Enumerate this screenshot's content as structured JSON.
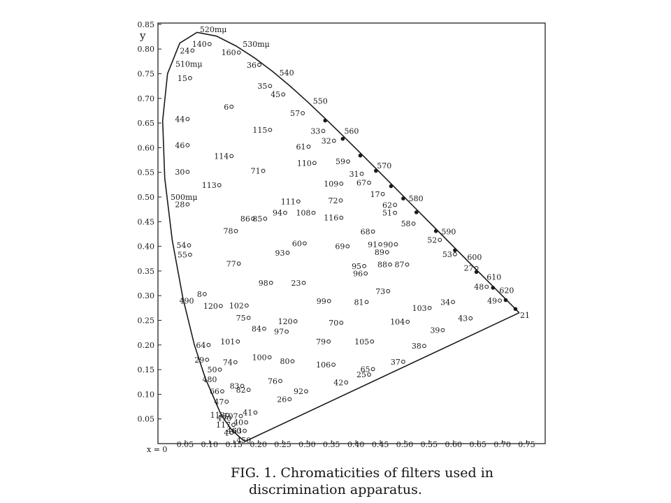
{
  "chart_data": {
    "type": "scatter",
    "title": "",
    "caption": {
      "line1": "FIG. 1. Chromaticities of filters used in",
      "line2": "discrimination apparatus."
    },
    "xlabel": "x = 0",
    "ylabel": "y",
    "xlim": [
      0,
      0.75
    ],
    "ylim": [
      0,
      0.85
    ],
    "grid": false,
    "x_ticks": [
      "0.05",
      "0.10",
      "0.15",
      "0.20",
      "0.25",
      "0.30",
      "0.35",
      "0.40",
      "0.45",
      "0.50",
      "0.55",
      "0.60",
      "0.65",
      "0.70",
      "0.75"
    ],
    "x_tick_values": [
      0.05,
      0.1,
      0.15,
      0.2,
      0.25,
      0.3,
      0.35,
      0.4,
      0.45,
      0.5,
      0.55,
      0.6,
      0.65,
      0.7,
      0.75
    ],
    "y_ticks": [
      "0.85",
      "0.80",
      "0.75",
      "0.70",
      "0.65",
      "0.60",
      "0.55",
      "0.50",
      "0.45",
      "0.40",
      "0.35",
      "0.30",
      "0.25",
      "0.20",
      "0.15",
      "0.10",
      "0.05"
    ],
    "y_tick_values": [
      0.85,
      0.8,
      0.75,
      0.7,
      0.65,
      0.6,
      0.55,
      0.5,
      0.45,
      0.4,
      0.35,
      0.3,
      0.25,
      0.2,
      0.15,
      0.1,
      0.05
    ],
    "spectrum_locus": [
      [
        0.1741,
        0.005
      ],
      [
        0.1733,
        0.0048
      ],
      [
        0.1714,
        0.0051
      ],
      [
        0.1689,
        0.0069
      ],
      [
        0.1644,
        0.0109
      ],
      [
        0.1566,
        0.0177
      ],
      [
        0.144,
        0.0297
      ],
      [
        0.1241,
        0.0578
      ],
      [
        0.0913,
        0.1327
      ],
      [
        0.0687,
        0.2007
      ],
      [
        0.0454,
        0.295
      ],
      [
        0.0235,
        0.4127
      ],
      [
        0.0082,
        0.5384
      ],
      [
        0.0039,
        0.6548
      ],
      [
        0.0139,
        0.7502
      ],
      [
        0.0389,
        0.812
      ],
      [
        0.0743,
        0.8338
      ],
      [
        0.1142,
        0.8262
      ],
      [
        0.1547,
        0.8059
      ],
      [
        0.1929,
        0.7816
      ],
      [
        0.2296,
        0.7543
      ],
      [
        0.2658,
        0.7243
      ],
      [
        0.3016,
        0.6923
      ],
      [
        0.3373,
        0.6589
      ],
      [
        0.3731,
        0.6245
      ],
      [
        0.4087,
        0.5896
      ],
      [
        0.4441,
        0.5547
      ],
      [
        0.4788,
        0.5202
      ],
      [
        0.5125,
        0.4866
      ],
      [
        0.5448,
        0.4544
      ],
      [
        0.5752,
        0.4242
      ],
      [
        0.6029,
        0.3965
      ],
      [
        0.627,
        0.3725
      ],
      [
        0.6482,
        0.3514
      ],
      [
        0.6658,
        0.334
      ],
      [
        0.6801,
        0.3197
      ],
      [
        0.6915,
        0.3083
      ],
      [
        0.7006,
        0.2993
      ],
      [
        0.7079,
        0.292
      ],
      [
        0.714,
        0.2859
      ],
      [
        0.719,
        0.2809
      ],
      [
        0.723,
        0.277
      ],
      [
        0.726,
        0.274
      ],
      [
        0.7347,
        0.2653
      ]
    ],
    "wavelength_labels": [
      {
        "text": "450",
        "x": 0.155,
        "y": 0.007
      },
      {
        "text": "460",
        "x": 0.135,
        "y": 0.026
      },
      {
        "text": "470",
        "x": 0.115,
        "y": 0.052
      },
      {
        "text": "480",
        "x": 0.085,
        "y": 0.13
      },
      {
        "text": "490",
        "x": 0.038,
        "y": 0.29
      },
      {
        "text": "500mμ",
        "x": 0.02,
        "y": 0.5
      },
      {
        "text": "510mμ",
        "x": 0.03,
        "y": 0.77
      },
      {
        "text": "520mμ",
        "x": 0.08,
        "y": 0.84
      },
      {
        "text": "530mμ",
        "x": 0.168,
        "y": 0.81
      },
      {
        "text": "540",
        "x": 0.243,
        "y": 0.752
      },
      {
        "text": "550",
        "x": 0.312,
        "y": 0.695
      },
      {
        "text": "560",
        "x": 0.376,
        "y": 0.634
      },
      {
        "text": "570",
        "x": 0.443,
        "y": 0.564
      },
      {
        "text": "580",
        "x": 0.508,
        "y": 0.497
      },
      {
        "text": "590",
        "x": 0.575,
        "y": 0.43
      },
      {
        "text": "600",
        "x": 0.628,
        "y": 0.378
      },
      {
        "text": "610",
        "x": 0.668,
        "y": 0.338
      },
      {
        "text": "620",
        "x": 0.694,
        "y": 0.311
      }
    ],
    "points": [
      {
        "label": "140",
        "x": 0.1,
        "y": 0.81
      },
      {
        "label": "24",
        "x": 0.065,
        "y": 0.797
      },
      {
        "label": "160",
        "x": 0.16,
        "y": 0.793
      },
      {
        "label": "36",
        "x": 0.202,
        "y": 0.768
      },
      {
        "label": "15",
        "x": 0.06,
        "y": 0.741
      },
      {
        "label": "35",
        "x": 0.224,
        "y": 0.725
      },
      {
        "label": "45",
        "x": 0.251,
        "y": 0.708
      },
      {
        "label": "6",
        "x": 0.145,
        "y": 0.683
      },
      {
        "label": "57",
        "x": 0.291,
        "y": 0.67
      },
      {
        "label": "44",
        "x": 0.055,
        "y": 0.658
      },
      {
        "label": "115",
        "x": 0.224,
        "y": 0.636
      },
      {
        "label": "33",
        "x": 0.333,
        "y": 0.634
      },
      {
        "label": "32",
        "x": 0.355,
        "y": 0.614
      },
      {
        "label": "46",
        "x": 0.055,
        "y": 0.605
      },
      {
        "label": "61",
        "x": 0.303,
        "y": 0.602
      },
      {
        "label": "114",
        "x": 0.145,
        "y": 0.583
      },
      {
        "label": "110",
        "x": 0.315,
        "y": 0.569
      },
      {
        "label": "59",
        "x": 0.384,
        "y": 0.572
      },
      {
        "label": "71",
        "x": 0.21,
        "y": 0.553
      },
      {
        "label": "30",
        "x": 0.055,
        "y": 0.551
      },
      {
        "label": "31",
        "x": 0.412,
        "y": 0.547
      },
      {
        "label": "67",
        "x": 0.427,
        "y": 0.529
      },
      {
        "label": "113",
        "x": 0.12,
        "y": 0.524
      },
      {
        "label": "109",
        "x": 0.37,
        "y": 0.527
      },
      {
        "label": "17",
        "x": 0.455,
        "y": 0.506
      },
      {
        "label": "72",
        "x": 0.369,
        "y": 0.493
      },
      {
        "label": "111",
        "x": 0.282,
        "y": 0.491
      },
      {
        "label": "62",
        "x": 0.48,
        "y": 0.484
      },
      {
        "label": "28",
        "x": 0.055,
        "y": 0.485
      },
      {
        "label": "51",
        "x": 0.48,
        "y": 0.468
      },
      {
        "label": "94",
        "x": 0.255,
        "y": 0.468
      },
      {
        "label": "108",
        "x": 0.313,
        "y": 0.468
      },
      {
        "label": "116",
        "x": 0.37,
        "y": 0.458
      },
      {
        "label": "86",
        "x": 0.189,
        "y": 0.456
      },
      {
        "label": "85",
        "x": 0.214,
        "y": 0.456
      },
      {
        "label": "58",
        "x": 0.518,
        "y": 0.446
      },
      {
        "label": "78",
        "x": 0.154,
        "y": 0.431
      },
      {
        "label": "68",
        "x": 0.435,
        "y": 0.43
      },
      {
        "label": "52",
        "x": 0.572,
        "y": 0.413
      },
      {
        "label": "91",
        "x": 0.45,
        "y": 0.404
      },
      {
        "label": "90",
        "x": 0.482,
        "y": 0.404
      },
      {
        "label": "60",
        "x": 0.295,
        "y": 0.406
      },
      {
        "label": "69",
        "x": 0.383,
        "y": 0.4
      },
      {
        "label": "54",
        "x": 0.058,
        "y": 0.402
      },
      {
        "label": "89",
        "x": 0.464,
        "y": 0.388
      },
      {
        "label": "93",
        "x": 0.26,
        "y": 0.387
      },
      {
        "label": "55",
        "x": 0.06,
        "y": 0.383
      },
      {
        "label": "53",
        "x": 0.603,
        "y": 0.384
      },
      {
        "label": "77",
        "x": 0.16,
        "y": 0.365
      },
      {
        "label": "88",
        "x": 0.47,
        "y": 0.363
      },
      {
        "label": "87",
        "x": 0.505,
        "y": 0.363
      },
      {
        "label": "95",
        "x": 0.417,
        "y": 0.36
      },
      {
        "label": "27",
        "x": 0.647,
        "y": 0.356
      },
      {
        "label": "96",
        "x": 0.42,
        "y": 0.345
      },
      {
        "label": "98",
        "x": 0.226,
        "y": 0.326
      },
      {
        "label": "23",
        "x": 0.293,
        "y": 0.326
      },
      {
        "label": "73",
        "x": 0.466,
        "y": 0.309
      },
      {
        "label": "48",
        "x": 0.668,
        "y": 0.318
      },
      {
        "label": "49",
        "x": 0.695,
        "y": 0.29
      },
      {
        "label": "8",
        "x": 0.09,
        "y": 0.303
      },
      {
        "label": "99",
        "x": 0.345,
        "y": 0.289
      },
      {
        "label": "81",
        "x": 0.422,
        "y": 0.287
      },
      {
        "label": "34",
        "x": 0.599,
        "y": 0.287
      },
      {
        "label": "102",
        "x": 0.176,
        "y": 0.28
      },
      {
        "label": "120",
        "x": 0.123,
        "y": 0.279
      },
      {
        "label": "103",
        "x": 0.551,
        "y": 0.275
      },
      {
        "label": "75",
        "x": 0.18,
        "y": 0.255
      },
      {
        "label": "120",
        "x": 0.276,
        "y": 0.248
      },
      {
        "label": "43",
        "x": 0.635,
        "y": 0.254
      },
      {
        "label": "104",
        "x": 0.506,
        "y": 0.247
      },
      {
        "label": "70",
        "x": 0.37,
        "y": 0.245
      },
      {
        "label": "84",
        "x": 0.212,
        "y": 0.233
      },
      {
        "label": "97",
        "x": 0.258,
        "y": 0.227
      },
      {
        "label": "39",
        "x": 0.578,
        "y": 0.23
      },
      {
        "label": "79",
        "x": 0.344,
        "y": 0.207
      },
      {
        "label": "64",
        "x": 0.098,
        "y": 0.2
      },
      {
        "label": "101",
        "x": 0.158,
        "y": 0.207
      },
      {
        "label": "105",
        "x": 0.433,
        "y": 0.207
      },
      {
        "label": "38",
        "x": 0.54,
        "y": 0.198
      },
      {
        "label": "29",
        "x": 0.095,
        "y": 0.17
      },
      {
        "label": "100",
        "x": 0.223,
        "y": 0.175
      },
      {
        "label": "74",
        "x": 0.153,
        "y": 0.165
      },
      {
        "label": "80",
        "x": 0.27,
        "y": 0.167
      },
      {
        "label": "106",
        "x": 0.354,
        "y": 0.16
      },
      {
        "label": "37",
        "x": 0.497,
        "y": 0.166
      },
      {
        "label": "50",
        "x": 0.121,
        "y": 0.15
      },
      {
        "label": "65",
        "x": 0.435,
        "y": 0.151
      },
      {
        "label": "25",
        "x": 0.427,
        "y": 0.14
      },
      {
        "label": "83",
        "x": 0.167,
        "y": 0.117
      },
      {
        "label": "76",
        "x": 0.245,
        "y": 0.127
      },
      {
        "label": "42",
        "x": 0.38,
        "y": 0.124
      },
      {
        "label": "66",
        "x": 0.126,
        "y": 0.106
      },
      {
        "label": "82",
        "x": 0.18,
        "y": 0.109
      },
      {
        "label": "92",
        "x": 0.298,
        "y": 0.106
      },
      {
        "label": "47",
        "x": 0.135,
        "y": 0.085
      },
      {
        "label": "26",
        "x": 0.264,
        "y": 0.09
      },
      {
        "label": "41",
        "x": 0.194,
        "y": 0.063
      },
      {
        "label": "118",
        "x": 0.137,
        "y": 0.058
      },
      {
        "label": "107",
        "x": 0.164,
        "y": 0.056
      },
      {
        "label": "117",
        "x": 0.149,
        "y": 0.038
      },
      {
        "label": "40",
        "x": 0.175,
        "y": 0.043
      },
      {
        "label": "4",
        "x": 0.145,
        "y": 0.022
      },
      {
        "label": "63",
        "x": 0.172,
        "y": 0.026
      }
    ],
    "filled_points": [
      [
        0.337,
        0.655
      ],
      [
        0.373,
        0.618
      ],
      [
        0.409,
        0.584
      ],
      [
        0.441,
        0.553
      ],
      [
        0.472,
        0.522
      ],
      [
        0.497,
        0.497
      ],
      [
        0.524,
        0.469
      ],
      [
        0.564,
        0.431
      ],
      [
        0.603,
        0.392
      ],
      [
        0.647,
        0.348
      ],
      [
        0.681,
        0.316
      ],
      [
        0.707,
        0.291
      ],
      [
        0.727,
        0.273
      ]
    ],
    "endpoint_label": {
      "text": "21",
      "x": 0.728,
      "y": 0.262
    }
  }
}
